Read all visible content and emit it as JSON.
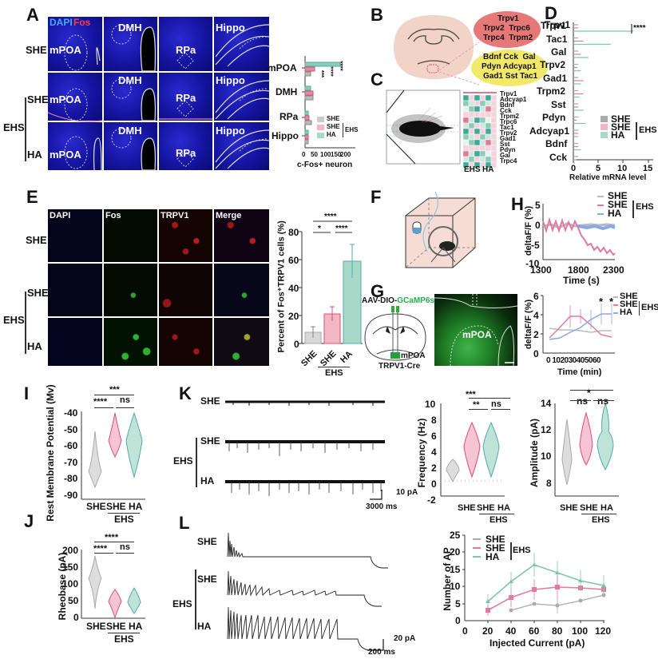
{
  "panels": {
    "A": {
      "label": "A",
      "stain_dapi": "DAPI",
      "stain_fos": "Fos",
      "columns": [
        "mPOA",
        "DMH",
        "RPa",
        "Hippo"
      ],
      "rows": [
        "SHE",
        "SHE",
        "HA"
      ],
      "group_label": "EHS"
    },
    "B": {
      "label": "B",
      "genes_red": [
        "Trpv1",
        "Trpv2  Trpc6",
        "Trpc4  Trpm2"
      ],
      "genes_yellow": [
        "Bdnf Cck  Gal",
        "Pdyn Adcyap1",
        "Gad1 Sst Tac1"
      ]
    },
    "C": {
      "label": "C",
      "heatmap_genes": [
        "Trpv1",
        "Adcyap1",
        "Bdnf",
        "Cck",
        "Trpm2",
        "Trpc6",
        "Tac1",
        "Trpv2",
        "Gad1",
        "Sst",
        "Pdyn",
        "Gal",
        "Trpc4"
      ],
      "heatmap_groups": [
        "EHS",
        "HA"
      ]
    },
    "D": {
      "label": "D",
      "xlabel": "Relative mRNA level",
      "significance": "****"
    },
    "E": {
      "label": "E",
      "columns": [
        "DAPI",
        "Fos",
        "TRPV1",
        "Merge"
      ],
      "rows": [
        "SHE",
        "SHE",
        "HA"
      ],
      "group_label": "EHS",
      "ylabel": "Percent of Fos⁺TRPV1 cells (%)",
      "sig": [
        "****",
        "*",
        "****"
      ]
    },
    "F": {
      "label": "F"
    },
    "G": {
      "label": "G",
      "virus_prefix": "AAV-DIO-",
      "virus_suffix": "GCaMP6s",
      "region": "mPOA",
      "mouse_line": "TRPV1-Cre",
      "image_region": "mPOA"
    },
    "H": {
      "label": "H",
      "ylabel": "deltaF/F  (%)",
      "xlabel": "Time (s)",
      "xlabel2": "Time (min)",
      "sig": [
        "*",
        "*"
      ]
    },
    "I": {
      "label": "I",
      "ylabel": "Rest Membrane Potential (Mv)",
      "sig": [
        "***",
        "****",
        "ns"
      ]
    },
    "J": {
      "label": "J",
      "ylabel": "Rheobase (pA)",
      "sig": [
        "****",
        "****",
        "ns"
      ]
    },
    "K": {
      "label": "K",
      "rows": [
        "SHE",
        "SHE",
        "HA"
      ],
      "group_label": "EHS",
      "scale_y": "10 pA",
      "scale_x": "3000 ms",
      "freq_ylabel": "Frequency (Hz)",
      "amp_ylabel": "Amplitude (pA)",
      "freq_sig": [
        "***",
        "**",
        "ns"
      ],
      "amp_sig": [
        "*",
        "ns",
        "ns"
      ]
    },
    "L": {
      "label": "L",
      "rows": [
        "SHE",
        "SHE",
        "HA"
      ],
      "group_label": "EHS",
      "scale_y": "20 pA",
      "scale_x": "200 ms",
      "ylabel": "Number of AP",
      "xlabel": "Injected Current (pA)"
    }
  },
  "legend": {
    "she": "SHE",
    "ehs_she": "SHE",
    "ha": "HA",
    "ehs": "EHS"
  },
  "xgroups": {
    "she": "SHE",
    "ehs_she": "SHE",
    "ha": "HA",
    "ehs": "EHS"
  },
  "colors": {
    "she": "#b9b9b9",
    "ehs_she": "#e58aa6",
    "ha": "#8ccbb8",
    "ha_line": "#7aa6e0"
  },
  "chart_data": [
    {
      "id": "A_bar",
      "type": "bar",
      "orientation": "horizontal",
      "categories": [
        "mPOA",
        "DMH",
        "RPa",
        "Hippo"
      ],
      "series": [
        {
          "name": "SHE",
          "values": [
            25,
            35,
            28,
            12
          ]
        },
        {
          "name": "EHS SHE",
          "values": [
            45,
            35,
            20,
            15
          ]
        },
        {
          "name": "EHS HA",
          "values": [
            150,
            25,
            15,
            15
          ]
        }
      ],
      "xlabel": "c-Fos+ neuron",
      "xticks": [
        0,
        50,
        100,
        150,
        200
      ],
      "xlim": [
        0,
        200
      ],
      "annotations": [
        "****",
        "****",
        "****",
        "***"
      ]
    },
    {
      "id": "D_bar",
      "type": "bar",
      "orientation": "horizontal",
      "categories": [
        "Trpv1",
        "Tac1",
        "Gal",
        "Trpv2",
        "Gad1",
        "Trpm2",
        "Sst",
        "Pdyn",
        "Adcyap1",
        "Bdnf",
        "Cck"
      ],
      "series": [
        {
          "name": "SHE",
          "values": [
            1,
            1,
            1,
            1,
            1,
            1,
            1,
            1,
            1,
            1,
            1
          ]
        },
        {
          "name": "EHS SHE",
          "values": [
            1,
            2,
            1.5,
            0.8,
            2,
            2,
            1,
            0.7,
            1,
            1,
            0.6
          ]
        },
        {
          "name": "EHS HA",
          "values": [
            12,
            7.5,
            3,
            1.5,
            1.5,
            1.2,
            2,
            2.5,
            1,
            1.5,
            0.3
          ]
        }
      ],
      "xlabel": "Relative mRNA level",
      "xticks": [
        0,
        5,
        10,
        15
      ],
      "xlim": [
        0,
        15
      ]
    },
    {
      "id": "E_bar",
      "type": "bar",
      "categories": [
        "SHE",
        "EHS SHE",
        "EHS HA"
      ],
      "values": [
        8,
        21,
        59
      ],
      "errors": [
        4,
        5,
        12
      ],
      "ylabel": "Percent of Fos+TRPV1 cells (%)",
      "yticks": [
        0,
        20,
        40,
        60,
        80
      ],
      "ylim": [
        0,
        80
      ]
    },
    {
      "id": "H_trace",
      "type": "line",
      "series": [
        {
          "name": "SHE"
        },
        {
          "name": "EHS SHE"
        },
        {
          "name": "EHS HA"
        }
      ],
      "xlabel": "Time (s)",
      "xticks": [
        1300,
        1800,
        2300
      ],
      "ylabel": "deltaF/F (%)",
      "yticks": [
        -10,
        -5,
        0,
        5
      ]
    },
    {
      "id": "H_summary",
      "type": "line",
      "x": [
        0,
        10,
        20,
        30,
        40,
        50,
        60
      ],
      "series": [
        {
          "name": "SHE",
          "values": [
            2.6,
            2.4,
            2.4,
            2.3,
            2.2,
            2.3,
            2.3
          ]
        },
        {
          "name": "EHS SHE",
          "values": [
            1.6,
            2.7,
            3.8,
            3.8,
            2.9,
            1.9,
            1.7
          ]
        },
        {
          "name": "EHS HA",
          "values": [
            1.4,
            1.6,
            2.2,
            2.7,
            3.5,
            4.1,
            4.1
          ]
        }
      ],
      "xlabel": "Time (min)",
      "xticks": [
        0,
        10,
        20,
        30,
        40,
        50,
        60
      ],
      "ylabel": "deltaF/F (%)",
      "yticks": [
        0,
        2,
        4,
        6
      ],
      "ylim": [
        0,
        6
      ],
      "annotations": [
        "* at 50",
        "* at 60"
      ]
    },
    {
      "id": "I_violin",
      "type": "violin",
      "categories": [
        "SHE",
        "EHS SHE",
        "EHS HA"
      ],
      "medians": [
        -73,
        -55,
        -57
      ],
      "ylabel": "Rest Membrane Potential (Mv)",
      "yticks": [
        -90,
        -80,
        -70,
        -60,
        -50,
        -40
      ],
      "ylim": [
        -90,
        -40
      ]
    },
    {
      "id": "J_violin",
      "type": "violin",
      "categories": [
        "SHE",
        "EHS SHE",
        "EHS HA"
      ],
      "medians": [
        120,
        45,
        40
      ],
      "ylabel": "Rheobase (pA)",
      "yticks": [
        0,
        50,
        100,
        150,
        200
      ],
      "ylim": [
        0,
        200
      ]
    },
    {
      "id": "K_freq",
      "type": "violin",
      "categories": [
        "SHE",
        "EHS SHE",
        "EHS HA"
      ],
      "medians": [
        1.8,
        4.3,
        4.5
      ],
      "ylabel": "Frequency (Hz)",
      "yticks": [
        -2,
        0,
        2,
        4,
        6,
        8,
        10
      ],
      "ylim": [
        -2,
        10
      ]
    },
    {
      "id": "K_amp",
      "type": "violin",
      "categories": [
        "SHE",
        "EHS SHE",
        "EHS HA"
      ],
      "medians": [
        9.2,
        11.1,
        10.6
      ],
      "ylabel": "Amplitude (pA)",
      "yticks": [
        8,
        10,
        12,
        14
      ],
      "ylim": [
        7.5,
        14
      ]
    },
    {
      "id": "L_line",
      "type": "line",
      "x": [
        20,
        40,
        60,
        80,
        100,
        120
      ],
      "series": [
        {
          "name": "SHE",
          "values": [
            null,
            3,
            5,
            4.5,
            5.8,
            7.5
          ]
        },
        {
          "name": "EHS SHE",
          "values": [
            3,
            6.8,
            9.1,
            9.9,
            9.6,
            9.0
          ]
        },
        {
          "name": "EHS HA",
          "values": [
            5.5,
            11.5,
            16.4,
            14,
            11.8,
            10.2
          ]
        }
      ],
      "xlabel": "Injected Current (pA)",
      "xticks": [
        0,
        20,
        40,
        60,
        80,
        100,
        120
      ],
      "ylabel": "Number of AP",
      "yticks": [
        0,
        5,
        10,
        15,
        20,
        25
      ],
      "ylim": [
        0,
        25
      ]
    }
  ],
  "ticks": {
    "A": [
      "0",
      "50",
      "100",
      "150",
      "200"
    ],
    "D": [
      "0",
      "5",
      "10",
      "15"
    ],
    "E": [
      "0",
      "20",
      "40",
      "60",
      "80"
    ],
    "H1y": [
      "5",
      "0",
      "-5",
      "-10"
    ],
    "H1x": [
      "1300",
      "1800",
      "2300"
    ],
    "H2y": [
      "6",
      "4",
      "2",
      "0"
    ],
    "H2x": [
      "0",
      "10",
      "20",
      "30",
      "40",
      "50",
      "60"
    ],
    "I": [
      "-40",
      "-50",
      "-60",
      "-70",
      "-80",
      "-90"
    ],
    "J": [
      "200",
      "150",
      "100",
      "50",
      "0"
    ],
    "Kf": [
      "10",
      "8",
      "6",
      "4",
      "2",
      "0",
      "-2"
    ],
    "Ka": [
      "14",
      "12",
      "10",
      "8"
    ],
    "Ly": [
      "25",
      "20",
      "15",
      "10",
      "5",
      "0"
    ],
    "Lx": [
      "0",
      "20",
      "40",
      "60",
      "80",
      "100",
      "120"
    ]
  },
  "D_genes": [
    "Trpv1",
    "Tac1",
    "Gal",
    "Trpv2",
    "Gad1",
    "Trpm2",
    "Sst",
    "Pdyn",
    "Adcyap1",
    "Bdnf",
    "Cck"
  ],
  "A_cats": [
    "mPOA",
    "DMH",
    "RPa",
    "Hippo"
  ],
  "A_xlabel": "c-Fos+ neuron"
}
